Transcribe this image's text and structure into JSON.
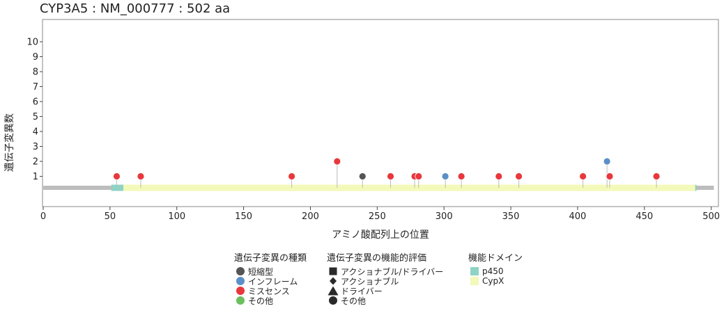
{
  "chart_data": {
    "type": "lollipop",
    "title": "CYP3A5 : NM_000777 : 502 aa",
    "xlabel": "アミノ酸配列上の位置",
    "ylabel": "遺伝子変異数",
    "xlim": [
      0,
      502
    ],
    "ylim": [
      0,
      10
    ],
    "x_ticks": [
      0,
      50,
      100,
      150,
      200,
      250,
      300,
      350,
      400,
      450,
      500
    ],
    "y_ticks": [
      1,
      2,
      3,
      4,
      5,
      6,
      7,
      8,
      9,
      10
    ],
    "protein_length": 502,
    "domains": [
      {
        "name": "p450",
        "start": 51,
        "end": 489
      },
      {
        "name": "CypX",
        "start": 60,
        "end": 488
      }
    ],
    "mutations": [
      {
        "position": 55,
        "count": 1,
        "type": "missense"
      },
      {
        "position": 73,
        "count": 1,
        "type": "missense"
      },
      {
        "position": 186,
        "count": 1,
        "type": "missense"
      },
      {
        "position": 220,
        "count": 2,
        "type": "missense"
      },
      {
        "position": 239,
        "count": 1,
        "type": "truncating"
      },
      {
        "position": 260,
        "count": 1,
        "type": "missense"
      },
      {
        "position": 278,
        "count": 1,
        "type": "missense"
      },
      {
        "position": 281,
        "count": 1,
        "type": "missense"
      },
      {
        "position": 301,
        "count": 1,
        "type": "inframe"
      },
      {
        "position": 313,
        "count": 1,
        "type": "missense"
      },
      {
        "position": 341,
        "count": 1,
        "type": "missense"
      },
      {
        "position": 356,
        "count": 1,
        "type": "missense"
      },
      {
        "position": 404,
        "count": 1,
        "type": "missense"
      },
      {
        "position": 422,
        "count": 2,
        "type": "inframe"
      },
      {
        "position": 424,
        "count": 1,
        "type": "missense"
      },
      {
        "position": 459,
        "count": 1,
        "type": "missense"
      }
    ],
    "grid": false
  },
  "colors": {
    "truncating": "#555555",
    "inframe": "#5b8fc7",
    "missense": "#e8383d",
    "other": "#6bbf5e",
    "p450": "#8fd3c4",
    "CypX": "#f3f9b8",
    "backbone": "#bdbdbd"
  },
  "legend": {
    "type": {
      "title": "遺伝子変異の種類",
      "items": [
        {
          "key": "truncating",
          "label": "短縮型"
        },
        {
          "key": "inframe",
          "label": "インフレーム"
        },
        {
          "key": "missense",
          "label": "ミスセンス"
        },
        {
          "key": "other",
          "label": "その他"
        }
      ]
    },
    "function": {
      "title": "遺伝子変異の機能的評価",
      "items": [
        {
          "shape": "square",
          "label": "アクショナブル/ドライバー"
        },
        {
          "shape": "diamond",
          "label": "アクショナブル"
        },
        {
          "shape": "triangle",
          "label": "ドライバー"
        },
        {
          "shape": "circle",
          "label": "その他"
        }
      ]
    },
    "domain": {
      "title": "機能ドメイン",
      "items": [
        {
          "key": "p450",
          "label": "p450"
        },
        {
          "key": "CypX",
          "label": "CypX"
        }
      ]
    }
  }
}
